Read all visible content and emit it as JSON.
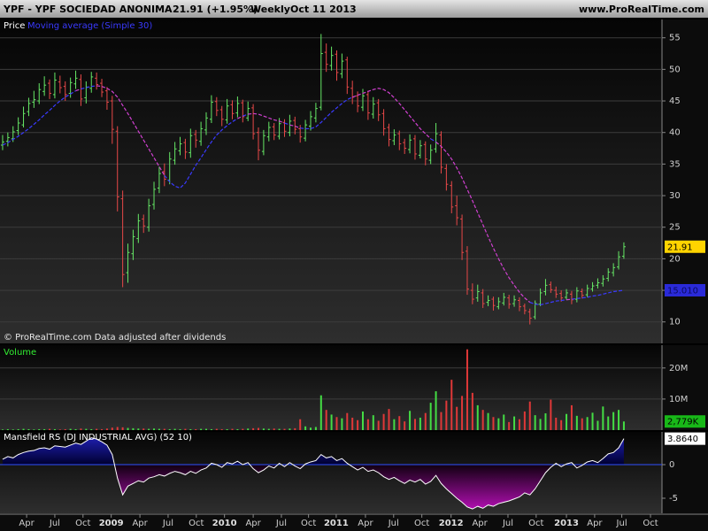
{
  "header": {
    "symbol": "YPF - YPF SOCIEDAD ANONIMA",
    "quote": "21.91 (+1.95%)",
    "period": "Weekly",
    "date": "Oct 11 2013",
    "site": "www.ProRealTime.com"
  },
  "x_axis": {
    "xlim": [
      -0.5,
      126.3
    ],
    "xticks": [
      {
        "value": 4.6,
        "label": "Apr"
      },
      {
        "value": 10,
        "label": "Jul"
      },
      {
        "value": 15.4,
        "label": "Oct"
      },
      {
        "value": 20.8,
        "label": "2009"
      },
      {
        "value": 26.3,
        "label": "Apr"
      },
      {
        "value": 31.7,
        "label": "Jul"
      },
      {
        "value": 37.1,
        "label": "Oct"
      },
      {
        "value": 42.5,
        "label": "2010"
      },
      {
        "value": 48,
        "label": "Apr"
      },
      {
        "value": 53.4,
        "label": "Jul"
      },
      {
        "value": 58.6,
        "label": "Oct"
      },
      {
        "value": 63.9,
        "label": "2011"
      },
      {
        "value": 69.5,
        "label": "Apr"
      },
      {
        "value": 74.9,
        "label": "Jul"
      },
      {
        "value": 80.3,
        "label": "Oct"
      },
      {
        "value": 85.9,
        "label": "2012"
      },
      {
        "value": 91.4,
        "label": "Apr"
      },
      {
        "value": 96.8,
        "label": "Jul"
      },
      {
        "value": 102.2,
        "label": "Oct"
      },
      {
        "value": 108,
        "label": "2013"
      },
      {
        "value": 113.4,
        "label": "Apr"
      },
      {
        "value": 118.6,
        "label": "Jul"
      },
      {
        "value": 124.1,
        "label": "Oct"
      }
    ]
  },
  "chart_data": [
    {
      "type": "ohlc",
      "title": "Price",
      "note": "© ProRealTime.com Data adjusted after dividends",
      "up_color": "#66e866",
      "down_color": "#e84848",
      "last_box_color": "#ffd400",
      "ylim": [
        6.6,
        57.9
      ],
      "yticks": [
        10,
        15,
        20,
        25,
        30,
        35,
        40,
        45,
        50,
        55
      ],
      "grid": true,
      "open": [
        38.0,
        38.6,
        39.0,
        40.3,
        41.2,
        43.3,
        44.8,
        45.0,
        46.5,
        47.8,
        46.0,
        48.0,
        47.3,
        46.2,
        47.7,
        48.4,
        45.5,
        47.0,
        48.6,
        47.8,
        46.6,
        45.0,
        40.2,
        29.5,
        17.8,
        20.8,
        23.2,
        26.3,
        25.0,
        28.6,
        31.2,
        33.8,
        32.4,
        35.6,
        37.1,
        38.4,
        36.8,
        39.7,
        38.6,
        40.4,
        42.1,
        44.9,
        43.6,
        42.0,
        44.4,
        43.1,
        44.7,
        42.3,
        43.9,
        40.0,
        37.0,
        39.3,
        40.9,
        39.4,
        41.6,
        40.0,
        41.9,
        40.6,
        39.1,
        41.0,
        42.3,
        44.0,
        52.7,
        50.6,
        52.4,
        49.3,
        51.5,
        47.0,
        45.8,
        44.0,
        46.0,
        42.9,
        44.7,
        43.0,
        40.8,
        38.7,
        39.8,
        38.4,
        37.3,
        39.0,
        36.4,
        38.1,
        35.6,
        37.4,
        39.6,
        34.3,
        31.6,
        28.4,
        26.3,
        21.2,
        15.0,
        13.8,
        14.6,
        13.1,
        13.6,
        12.4,
        13.0,
        13.8,
        12.9,
        13.4,
        12.5,
        11.6,
        10.8,
        12.8,
        14.8,
        15.9,
        15.0,
        14.5,
        13.9,
        14.4,
        13.6,
        14.8,
        14.3,
        15.2,
        15.8,
        16.1,
        16.9,
        17.8,
        18.7,
        20.4
      ],
      "high": [
        39.6,
        40.0,
        41.0,
        42.4,
        44.1,
        45.5,
        46.6,
        47.8,
        48.9,
        48.4,
        49.5,
        49.0,
        48.1,
        48.7,
        49.8,
        49.2,
        48.1,
        49.6,
        49.5,
        48.5,
        47.2,
        45.8,
        41.0,
        30.8,
        22.4,
        24.6,
        27.1,
        27.0,
        29.5,
        32.2,
        34.6,
        35.1,
        36.9,
        38.5,
        39.3,
        39.0,
        40.6,
        40.4,
        41.7,
        43.2,
        45.9,
        45.6,
        44.2,
        45.3,
        45.1,
        45.7,
        45.2,
        44.9,
        44.5,
        40.8,
        40.4,
        41.7,
        41.5,
        42.3,
        42.1,
        42.8,
        42.5,
        41.2,
        42.0,
        43.4,
        44.7,
        55.6,
        54.1,
        53.6,
        53.0,
        52.5,
        52.0,
        48.2,
        46.5,
        46.9,
        46.6,
        45.6,
        45.3,
        43.7,
        41.4,
        40.5,
        40.3,
        39.0,
        39.7,
        39.6,
        38.8,
        38.6,
        38.1,
        41.5,
        40.2,
        35.0,
        32.3,
        30.0,
        27.0,
        22.0,
        16.1,
        15.9,
        15.2,
        14.2,
        14.0,
        13.9,
        14.6,
        14.3,
        14.2,
        13.9,
        12.9,
        12.1,
        13.4,
        15.3,
        16.8,
        16.4,
        15.6,
        15.0,
        15.2,
        14.9,
        15.5,
        15.3,
        15.9,
        16.3,
        16.9,
        17.4,
        18.5,
        19.3,
        21.2,
        22.6
      ],
      "low": [
        37.2,
        37.8,
        38.5,
        39.6,
        40.8,
        42.6,
        43.9,
        44.5,
        45.8,
        45.3,
        45.4,
        46.2,
        45.0,
        45.5,
        46.9,
        44.2,
        44.6,
        46.3,
        46.8,
        45.6,
        43.6,
        38.2,
        27.5,
        15.5,
        16.2,
        19.8,
        22.5,
        24.1,
        24.3,
        27.8,
        30.4,
        31.5,
        31.8,
        34.9,
        36.4,
        35.8,
        36.0,
        37.6,
        37.9,
        39.6,
        41.5,
        42.6,
        41.0,
        41.4,
        42.1,
        42.4,
        41.6,
        41.8,
        38.9,
        35.6,
        36.4,
        38.6,
        38.8,
        38.9,
        39.3,
        39.4,
        39.7,
        38.4,
        38.6,
        40.3,
        41.6,
        43.5,
        49.6,
        49.8,
        48.2,
        48.6,
        46.1,
        44.5,
        43.2,
        43.4,
        42.0,
        42.2,
        41.8,
        39.5,
        37.8,
        38.0,
        37.2,
        36.6,
        36.7,
        35.7,
        35.9,
        34.8,
        35.0,
        36.8,
        33.5,
        30.8,
        27.2,
        25.3,
        19.8,
        14.3,
        12.8,
        13.2,
        12.2,
        12.5,
        11.8,
        12.0,
        12.6,
        12.1,
        12.4,
        11.7,
        11.2,
        9.6,
        10.4,
        12.5,
        14.2,
        14.6,
        13.8,
        13.2,
        13.5,
        12.8,
        13.1,
        13.7,
        13.9,
        14.8,
        15.3,
        15.6,
        16.4,
        17.2,
        18.3,
        20.0
      ],
      "close": [
        38.5,
        39.2,
        40.1,
        41.5,
        43.0,
        44.6,
        45.2,
        46.8,
        47.5,
        46.2,
        48.3,
        47.1,
        46.0,
        47.9,
        48.6,
        45.3,
        47.2,
        48.8,
        47.6,
        46.4,
        44.8,
        40.5,
        29.8,
        17.5,
        21.0,
        23.5,
        26.0,
        25.2,
        28.4,
        31.0,
        33.5,
        32.6,
        35.8,
        37.4,
        38.2,
        36.9,
        39.5,
        38.8,
        40.6,
        42.3,
        44.8,
        43.5,
        42.1,
        44.2,
        43.0,
        44.6,
        42.5,
        43.8,
        39.8,
        37.2,
        39.5,
        40.8,
        39.6,
        41.4,
        40.2,
        41.8,
        40.5,
        39.3,
        41.2,
        42.5,
        43.8,
        52.5,
        50.8,
        52.2,
        49.5,
        51.3,
        47.2,
        45.6,
        44.2,
        45.8,
        43.1,
        44.5,
        42.8,
        40.6,
        38.9,
        39.6,
        38.2,
        37.5,
        38.8,
        36.6,
        37.9,
        35.8,
        37.2,
        39.8,
        34.5,
        31.8,
        28.2,
        26.5,
        21.0,
        15.2,
        13.6,
        14.8,
        12.9,
        13.4,
        12.6,
        13.2,
        13.9,
        12.8,
        13.5,
        12.4,
        11.8,
        10.6,
        12.9,
        14.6,
        15.8,
        15.1,
        14.4,
        13.8,
        14.6,
        13.5,
        14.9,
        14.2,
        15.3,
        15.7,
        16.2,
        16.8,
        17.9,
        18.6,
        20.3,
        21.91
      ],
      "series": [
        {
          "name": "Moving average (Simple 30)",
          "color": "#3a3aff",
          "alt_color": "#d040d0",
          "label_box_color": "#2a2ad8",
          "last_label": "15.010",
          "values": [
            38.0,
            38.4,
            38.9,
            39.4,
            40.0,
            40.6,
            41.3,
            42.0,
            42.8,
            43.5,
            44.3,
            45.0,
            45.6,
            46.1,
            46.6,
            46.9,
            47.1,
            47.3,
            47.4,
            47.3,
            47.0,
            46.5,
            45.6,
            44.3,
            43.0,
            41.6,
            40.2,
            38.8,
            37.4,
            36.0,
            34.6,
            33.2,
            32.2,
            31.5,
            31.2,
            32.0,
            33.4,
            34.8,
            36.0,
            37.3,
            38.5,
            39.6,
            40.4,
            41.1,
            41.7,
            42.2,
            42.6,
            42.9,
            43.0,
            42.9,
            42.6,
            42.3,
            42.0,
            41.8,
            41.5,
            41.2,
            41.0,
            40.7,
            40.6,
            40.6,
            40.9,
            41.6,
            42.4,
            43.2,
            43.9,
            44.6,
            45.2,
            45.6,
            45.9,
            46.2,
            46.5,
            46.8,
            47.0,
            46.8,
            46.3,
            45.5,
            44.6,
            43.6,
            42.6,
            41.6,
            40.6,
            39.8,
            39.0,
            38.5,
            37.8,
            36.9,
            35.8,
            34.4,
            32.8,
            31.0,
            29.2,
            27.3,
            25.4,
            23.5,
            21.7,
            20.0,
            18.4,
            17.0,
            15.8,
            14.7,
            13.8,
            13.1,
            12.8,
            12.7,
            12.9,
            13.1,
            13.3,
            13.4,
            13.5,
            13.6,
            13.7,
            13.8,
            13.9,
            14.1,
            14.2,
            14.4,
            14.6,
            14.8,
            14.9,
            15.01
          ]
        }
      ]
    },
    {
      "type": "volume",
      "title": "Volume",
      "up_color": "#44dd44",
      "down_color": "#e03838",
      "label_box_color": "#18b818",
      "last_label": "2,779K",
      "ylim": [
        0,
        27.35
      ],
      "yticks": [
        {
          "value": 10,
          "label": "10M"
        },
        {
          "value": 20,
          "label": "20M"
        }
      ],
      "grid": true,
      "values": [
        0.2,
        0.3,
        0.2,
        0.3,
        0.4,
        0.3,
        0.2,
        0.3,
        0.3,
        0.4,
        0.3,
        0.2,
        0.3,
        0.4,
        0.3,
        0.5,
        0.4,
        0.3,
        0.4,
        0.3,
        0.5,
        0.8,
        1.0,
        0.9,
        0.7,
        0.6,
        0.5,
        0.5,
        0.4,
        0.5,
        0.4,
        0.4,
        0.3,
        0.4,
        0.3,
        0.4,
        0.3,
        0.3,
        0.4,
        0.4,
        0.3,
        0.4,
        0.3,
        0.3,
        0.4,
        0.3,
        0.4,
        0.5,
        0.6,
        0.7,
        0.5,
        0.4,
        0.5,
        0.4,
        0.4,
        0.5,
        0.6,
        3.5,
        1.2,
        0.8,
        1.0,
        11.2,
        6.5,
        5.0,
        4.2,
        3.8,
        5.5,
        4.0,
        3.2,
        6.0,
        3.5,
        4.8,
        3.0,
        5.2,
        6.8,
        3.5,
        4.5,
        2.8,
        6.2,
        3.6,
        4.0,
        5.5,
        8.8,
        12.5,
        5.8,
        9.5,
        16.2,
        7.5,
        11.0,
        26.0,
        12.0,
        8.0,
        6.5,
        5.5,
        4.2,
        3.8,
        5.0,
        2.6,
        4.4,
        3.5,
        6.0,
        9.2,
        4.8,
        3.6,
        5.4,
        9.8,
        4.0,
        3.2,
        5.2,
        8.0,
        4.6,
        3.8,
        4.2,
        5.6,
        3.0,
        7.6,
        4.4,
        5.8,
        6.5,
        2.779
      ]
    },
    {
      "type": "area",
      "title": "Mansfield RS (DJ INDUSTRIAL AVG) (52 10)",
      "line_color": "#ffffff",
      "pos_color": "#2424c8",
      "neg_color": "#c010c0",
      "zero_color": "#3050ff",
      "label_box_color": "#ffffff",
      "last_label": "3.8640",
      "ylim": [
        -7.24,
        4.87
      ],
      "yticks": [
        -5,
        0
      ],
      "grid": false,
      "values": [
        0.8,
        1.2,
        1.0,
        1.5,
        1.8,
        2.0,
        2.1,
        2.4,
        2.5,
        2.3,
        2.8,
        2.7,
        2.6,
        2.9,
        3.2,
        3.0,
        3.5,
        4.0,
        3.8,
        3.4,
        2.9,
        1.5,
        -2.0,
        -4.5,
        -3.2,
        -2.8,
        -2.4,
        -2.6,
        -2.0,
        -1.8,
        -1.5,
        -1.7,
        -1.3,
        -1.0,
        -1.2,
        -1.5,
        -1.0,
        -1.3,
        -0.8,
        -0.5,
        0.2,
        0.0,
        -0.4,
        0.3,
        0.1,
        0.5,
        0.0,
        0.3,
        -0.6,
        -1.2,
        -0.8,
        -0.2,
        -0.5,
        0.2,
        -0.3,
        0.3,
        -0.2,
        -0.6,
        0.1,
        0.4,
        0.6,
        1.5,
        1.0,
        1.2,
        0.6,
        0.9,
        0.2,
        -0.3,
        -0.8,
        -0.4,
        -1.0,
        -0.8,
        -1.2,
        -1.8,
        -2.2,
        -1.9,
        -2.4,
        -2.8,
        -2.3,
        -2.6,
        -2.2,
        -2.9,
        -2.5,
        -1.6,
        -2.8,
        -3.6,
        -4.3,
        -5.0,
        -5.6,
        -6.3,
        -6.6,
        -6.2,
        -6.5,
        -6.0,
        -6.2,
        -5.8,
        -5.6,
        -5.4,
        -5.1,
        -4.8,
        -4.2,
        -4.5,
        -3.6,
        -2.4,
        -1.2,
        -0.4,
        0.2,
        -0.3,
        0.1,
        0.3,
        -0.5,
        -0.1,
        0.4,
        0.6,
        0.3,
        0.9,
        1.6,
        1.8,
        2.5,
        3.864
      ]
    }
  ]
}
